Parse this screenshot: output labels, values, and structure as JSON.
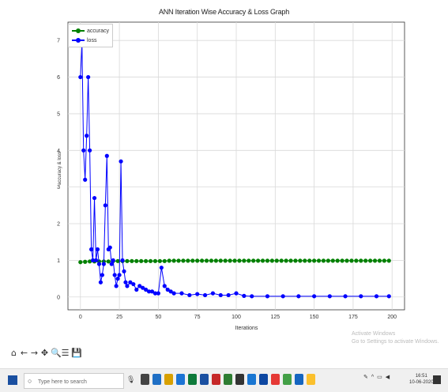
{
  "chart_data": {
    "type": "line",
    "title": "ANN Iteration Wise Accuracy & Loss Graph",
    "xlabel": "Iterations",
    "ylabel": "accuracy & loss",
    "xlim": [
      -8,
      208
    ],
    "ylim": [
      -0.35,
      7.5
    ],
    "xticks": [
      0,
      25,
      50,
      75,
      100,
      125,
      150,
      175,
      200
    ],
    "yticks": [
      0,
      1,
      2,
      3,
      4,
      5,
      6,
      7
    ],
    "grid": true,
    "legend": "top-left",
    "series": [
      {
        "name": "accuracy",
        "color": "#008000",
        "x": [
          0,
          3,
          6,
          9,
          12,
          15,
          18,
          21,
          24,
          27,
          30,
          33,
          36,
          39,
          42,
          45,
          48,
          51,
          54,
          57,
          60,
          63,
          66,
          69,
          72,
          75,
          78,
          81,
          84,
          87,
          90,
          93,
          96,
          99,
          102,
          105,
          108,
          111,
          114,
          117,
          120,
          123,
          126,
          129,
          132,
          135,
          138,
          141,
          144,
          147,
          150,
          153,
          156,
          159,
          162,
          165,
          168,
          171,
          174,
          177,
          180,
          183,
          186,
          189,
          192,
          195,
          198
        ],
        "y": [
          0.95,
          0.96,
          0.97,
          0.97,
          0.97,
          0.97,
          0.97,
          0.98,
          0.98,
          0.98,
          0.98,
          0.98,
          0.98,
          0.98,
          0.98,
          0.98,
          0.98,
          0.98,
          0.98,
          0.99,
          0.99,
          0.99,
          0.99,
          0.99,
          0.99,
          0.99,
          0.99,
          0.99,
          0.99,
          0.99,
          0.99,
          0.99,
          0.99,
          0.99,
          0.99,
          0.99,
          0.99,
          0.99,
          0.99,
          0.99,
          0.99,
          0.99,
          0.99,
          0.99,
          0.99,
          0.99,
          0.99,
          0.99,
          0.99,
          0.99,
          0.99,
          0.99,
          0.99,
          0.99,
          0.99,
          0.99,
          0.99,
          0.99,
          0.99,
          0.99,
          0.99,
          0.99,
          0.99,
          0.99,
          0.99,
          0.99,
          0.99
        ]
      },
      {
        "name": "loss",
        "color": "#0000ff",
        "x": [
          0,
          1,
          2,
          3,
          4,
          5,
          6,
          7,
          8,
          9,
          10,
          11,
          12,
          13,
          14,
          15,
          16,
          17,
          18,
          19,
          20,
          21,
          22,
          23,
          24,
          25,
          26,
          27,
          28,
          29,
          30,
          32,
          34,
          36,
          38,
          40,
          42,
          44,
          46,
          48,
          50,
          52,
          54,
          56,
          58,
          60,
          65,
          70,
          75,
          80,
          85,
          90,
          95,
          100,
          105,
          110,
          120,
          130,
          140,
          150,
          160,
          170,
          180,
          190,
          198
        ],
        "y": [
          6.0,
          6.9,
          4.0,
          3.2,
          4.4,
          6.0,
          4.0,
          1.3,
          1.0,
          2.7,
          1.0,
          1.3,
          0.9,
          0.4,
          0.6,
          0.9,
          2.5,
          3.85,
          1.3,
          1.35,
          0.9,
          1.0,
          0.6,
          0.3,
          0.5,
          0.6,
          3.7,
          1.0,
          0.7,
          0.4,
          0.3,
          0.4,
          0.35,
          0.2,
          0.3,
          0.25,
          0.2,
          0.15,
          0.15,
          0.1,
          0.1,
          0.8,
          0.3,
          0.2,
          0.15,
          0.1,
          0.1,
          0.05,
          0.08,
          0.05,
          0.1,
          0.05,
          0.05,
          0.1,
          0.03,
          0.02,
          0.02,
          0.02,
          0.02,
          0.02,
          0.02,
          0.02,
          0.02,
          0.02,
          0.02
        ]
      }
    ]
  },
  "watermark": {
    "line1": "Activate Windows",
    "line2": "Go to Settings to activate Windows."
  },
  "toolbar": {
    "home": "⌂",
    "back": "←",
    "forward": "→",
    "pan": "✥",
    "zoom": "🔍",
    "configure": "☰",
    "save": "💾"
  },
  "taskbar": {
    "search_placeholder": "Type here to search",
    "time": "16:51",
    "date": "10-06-2020"
  }
}
